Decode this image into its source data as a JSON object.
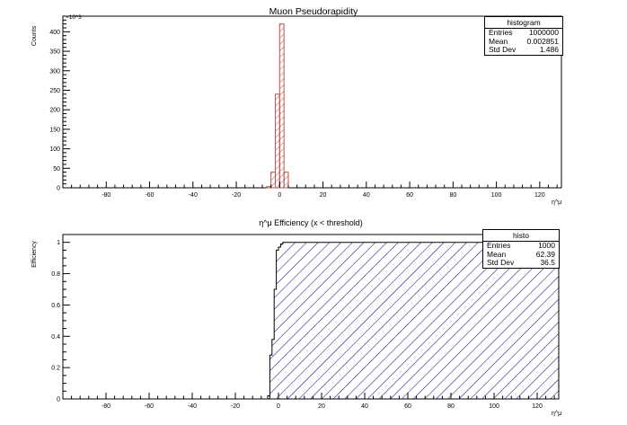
{
  "charts": [
    {
      "title": "Muon Pseudorapidity",
      "ylabel": "Counts",
      "xlabel": "η^μ",
      "y_exponent": "×10^3",
      "stats": {
        "name": "histogram",
        "rows": [
          {
            "label": "Entries",
            "value": "1000000"
          },
          {
            "label": "Mean",
            "value": "0.002851"
          },
          {
            "label": "Std Dev",
            "value": "1.486"
          }
        ]
      },
      "x_ticks": [
        "-80",
        "-60",
        "-40",
        "-20",
        "0",
        "20",
        "40",
        "60",
        "80",
        "100",
        "120"
      ],
      "y_ticks": [
        "0",
        "50",
        "100",
        "150",
        "200",
        "250",
        "300",
        "350",
        "400"
      ]
    },
    {
      "title": "η^μ Efficiency (x < threshold)",
      "ylabel": "Efficiency",
      "xlabel": "η^μ",
      "stats": {
        "name": "histo",
        "rows": [
          {
            "label": "Entries",
            "value": "1000"
          },
          {
            "label": "Mean",
            "value": "62.39"
          },
          {
            "label": "Std Dev",
            "value": "36.5"
          }
        ]
      },
      "x_ticks": [
        "-80",
        "-60",
        "-40",
        "-20",
        "0",
        "20",
        "40",
        "60",
        "80",
        "100",
        "120"
      ],
      "y_ticks": [
        "0",
        "0.2",
        "0.4",
        "0.6",
        "0.8",
        "1"
      ]
    }
  ],
  "chart_data": [
    {
      "type": "bar",
      "title": "Muon Pseudorapidity",
      "xlabel": "η^μ",
      "ylabel": "Counts",
      "xlim": [
        -100,
        130
      ],
      "ylim": [
        0,
        440
      ],
      "y_multiplier": 1000,
      "bin_width": 2,
      "bins_x": [
        -5,
        -3,
        -1,
        1,
        3
      ],
      "values": [
        3,
        40,
        240,
        420,
        40
      ],
      "fill": "hatched-diagonal",
      "color": "#c0504d",
      "grid": false,
      "legend": "top-right stats box"
    },
    {
      "type": "area",
      "title": "η^μ Efficiency (x < threshold)",
      "xlabel": "η^μ",
      "ylabel": "Efficiency",
      "xlim": [
        -100,
        130
      ],
      "ylim": [
        0,
        1.05
      ],
      "step": true,
      "x": [
        -100,
        -5,
        -4,
        -3,
        -2,
        -1,
        0,
        1,
        2,
        3,
        130
      ],
      "y": [
        0,
        0.02,
        0.28,
        0.38,
        0.7,
        0.95,
        0.97,
        0.99,
        1,
        1,
        1
      ],
      "fill": "hatched-diagonal",
      "color": "#00007f",
      "grid": false,
      "legend": "top-right stats box"
    }
  ]
}
